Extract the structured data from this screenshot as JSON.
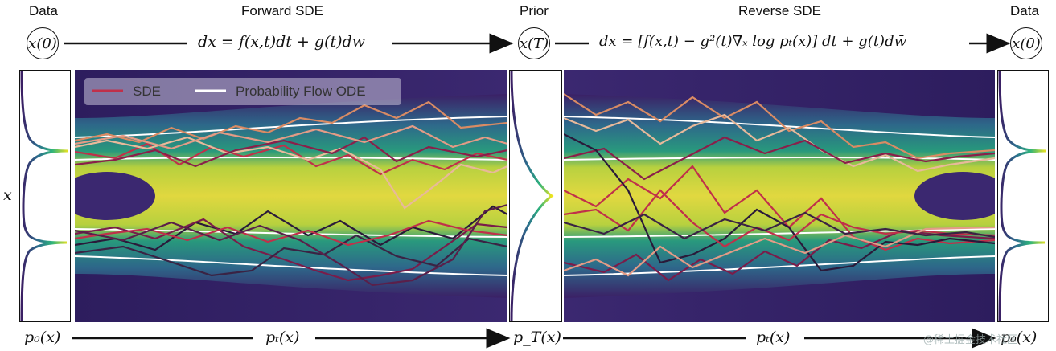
{
  "header": {
    "data_left_label": "Data",
    "forward_label": "Forward SDE",
    "prior_label": "Prior",
    "reverse_label": "Reverse SDE",
    "data_right_label": "Data"
  },
  "nodes": {
    "x0_left": "x(0)",
    "xT": "x(T)",
    "x0_right": "x(0)"
  },
  "equations": {
    "forward": "dx = f(x,t)dt + g(t)dw",
    "reverse": "dx = [f(x,t) − g²(t)∇ₓ log pₜ(x)] dt + g(t)dw̄"
  },
  "axis": {
    "x_label": "x"
  },
  "bottom": {
    "p0_left": "p₀(x)",
    "pt_forward": "pₜ(x)",
    "pT": "p_T(x)",
    "pt_reverse": "pₜ(x)",
    "p0_right": "p₀(x)"
  },
  "legend": {
    "sde": "SDE",
    "ode": "Probability Flow ODE"
  },
  "watermark": "@稀土掘金技术社区",
  "colors": {
    "sde_line": "#c0304a",
    "ode_line": "#ffffff",
    "border": "#111111"
  }
}
